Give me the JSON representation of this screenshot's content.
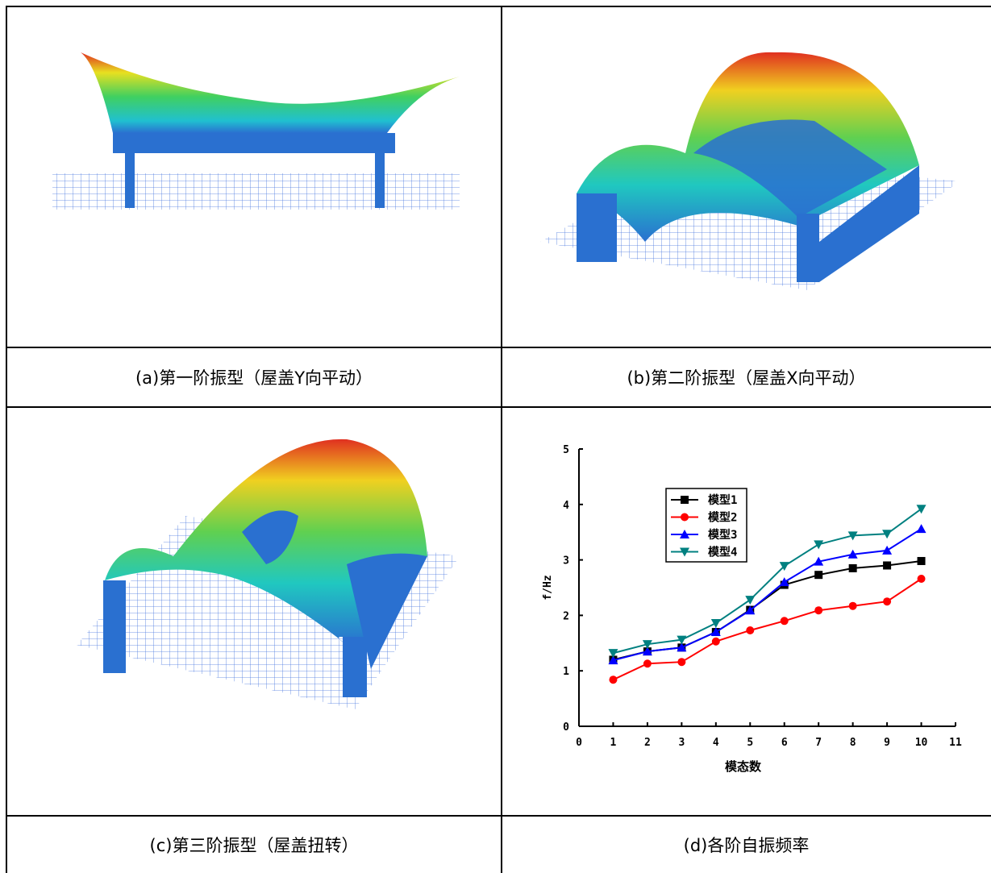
{
  "captions": [
    "(a)第一阶振型（屋盖Y向平动）",
    "(b)第二阶振型（屋盖X向平动）",
    "(c)第三阶振型（屋盖扭转）",
    "(d)各阶自振频率"
  ],
  "chart_data": {
    "type": "line",
    "x_label": "模态数",
    "y_label": "f/Hz",
    "x": [
      1,
      2,
      3,
      4,
      5,
      6,
      7,
      8,
      9,
      10
    ],
    "series": [
      {
        "name": "模型1",
        "color": "#000000",
        "marker": "square",
        "values": [
          1.2,
          1.35,
          1.42,
          1.7,
          2.1,
          2.55,
          2.73,
          2.85,
          2.9,
          2.98
        ]
      },
      {
        "name": "模型2",
        "color": "#ff0000",
        "marker": "circle",
        "values": [
          0.84,
          1.13,
          1.16,
          1.53,
          1.73,
          1.9,
          2.09,
          2.17,
          2.25,
          2.66
        ]
      },
      {
        "name": "模型3",
        "color": "#0000ff",
        "marker": "triangle-up",
        "values": [
          1.19,
          1.35,
          1.42,
          1.7,
          2.09,
          2.6,
          2.97,
          3.1,
          3.17,
          3.56
        ]
      },
      {
        "name": "模型4",
        "color": "#008080",
        "marker": "triangle-down",
        "values": [
          1.32,
          1.48,
          1.56,
          1.86,
          2.28,
          2.89,
          3.28,
          3.44,
          3.47,
          3.92
        ]
      }
    ],
    "xlim": [
      0,
      11
    ],
    "xticks": [
      0,
      1,
      2,
      3,
      4,
      5,
      6,
      7,
      8,
      9,
      10,
      11
    ],
    "ylim": [
      0,
      5
    ],
    "yticks": [
      0,
      1,
      2,
      3,
      4,
      5
    ]
  }
}
